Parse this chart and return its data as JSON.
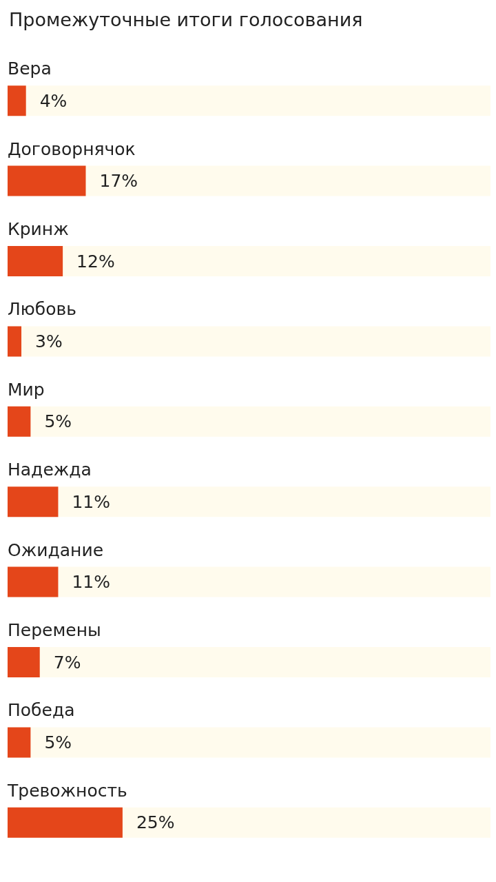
{
  "chart_data": {
    "type": "bar",
    "orientation": "horizontal",
    "title": "Промежуточные итоги голосования",
    "categories": [
      "Вера",
      "Договорнячок",
      "Кринж",
      "Любовь",
      "Мир",
      "Надежда",
      "Ожидание",
      "Перемены",
      "Победа",
      "Тревожность"
    ],
    "values": [
      4,
      17,
      12,
      3,
      5,
      11,
      11,
      7,
      5,
      25
    ],
    "value_labels": [
      "4%",
      "17%",
      "12%",
      "3%",
      "5%",
      "11%",
      "11%",
      "7%",
      "5%",
      "25%"
    ],
    "color": "#e4461a"
  }
}
